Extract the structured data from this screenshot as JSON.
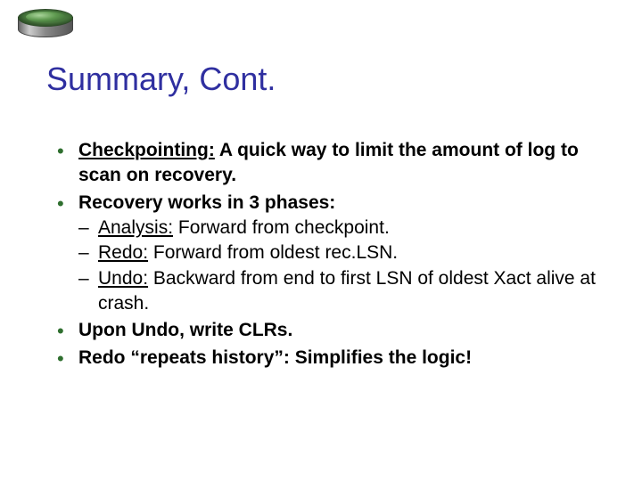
{
  "title": "Summary, Cont.",
  "title_color": "#2f2fa0",
  "title_fontsize": 36,
  "body_fontsize": 21,
  "bullet_color": "#2f6f2f",
  "bullets": {
    "b1": {
      "lead": "Checkpointing:",
      "rest": "  A quick way to limit the amount of log to scan on recovery."
    },
    "b2": {
      "lead": "Recovery works in 3 phases:",
      "sub": {
        "s1_head": "Analysis:",
        "s1_rest": " Forward from checkpoint.",
        "s2_head": "Redo:",
        "s2_rest": " Forward from oldest rec.LSN.",
        "s3_head": "Undo:",
        "s3_rest": " Backward from end to first LSN of oldest Xact alive at crash."
      }
    },
    "b3": "Upon Undo, write CLRs.",
    "b4": "Redo “repeats history”: Simplifies the logic!"
  },
  "logo": {
    "top_color": "#5f9a50",
    "body_gradient": [
      "#666",
      "#ccc",
      "#888",
      "#555"
    ]
  }
}
